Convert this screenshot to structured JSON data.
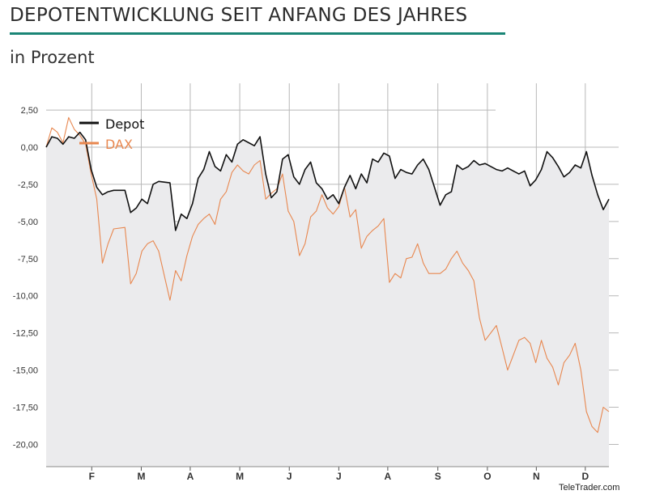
{
  "title": "DEPOTENTWICKLUNG SEIT ANFANG DES JAHRES",
  "subtitle": "in Prozent",
  "credit": "TeleTrader.com",
  "chart_data": {
    "type": "line",
    "ylim": [
      -21.5,
      4.3
    ],
    "x_range": [
      0,
      100
    ],
    "y_ticks": [
      2.5,
      0,
      -2.5,
      -5,
      -7.5,
      -10,
      -12.5,
      -15,
      -17.5,
      -20
    ],
    "y_tick_labels": [
      "2,50",
      "0,00",
      "-2,50",
      "-5,00",
      "-7,50",
      "-10,00",
      "-12,50",
      "-15,00",
      "-17,50",
      "-20,00"
    ],
    "month_labels": [
      {
        "label": "F",
        "x": 8.1
      },
      {
        "label": "M",
        "x": 16.9
      },
      {
        "label": "A",
        "x": 25.6
      },
      {
        "label": "M",
        "x": 34.4
      },
      {
        "label": "J",
        "x": 43.2
      },
      {
        "label": "J",
        "x": 52.0
      },
      {
        "label": "A",
        "x": 60.7
      },
      {
        "label": "S",
        "x": 69.6
      },
      {
        "label": "O",
        "x": 78.4
      },
      {
        "label": "N",
        "x": 87.1
      },
      {
        "label": "D",
        "x": 95.8
      }
    ],
    "colors": {
      "depot": "#111111",
      "dax": "#e8874f",
      "area": "#ebebed",
      "grid": "#b8b8b8",
      "title_rule": "#1a8576"
    },
    "series": [
      {
        "name": "Depot",
        "x": [
          0,
          1,
          2,
          3,
          4,
          5,
          6,
          7,
          8,
          9,
          10,
          11,
          12,
          14,
          15,
          16,
          17,
          18,
          19,
          20,
          22,
          23,
          24,
          25,
          26,
          27,
          28,
          29,
          30,
          31,
          32,
          33,
          34,
          35,
          36,
          37,
          38,
          39,
          40,
          41,
          42,
          43,
          44,
          45,
          46,
          47,
          48,
          49,
          50,
          51,
          52,
          53,
          54,
          55,
          56,
          57,
          58,
          59,
          60,
          61,
          62,
          63,
          64,
          65,
          66,
          67,
          68,
          70,
          71,
          72,
          73,
          74,
          75,
          76,
          77,
          78,
          80,
          81,
          82,
          84,
          85,
          86,
          87,
          88,
          89,
          90,
          91,
          92,
          93,
          94,
          95,
          96,
          97,
          98,
          99,
          100
        ],
        "values": [
          0,
          0.7,
          0.6,
          0.2,
          0.7,
          0.6,
          1.0,
          0.5,
          -1.5,
          -2.7,
          -3.2,
          -3.0,
          -2.9,
          -2.9,
          -4.4,
          -4.1,
          -3.5,
          -3.8,
          -2.5,
          -2.3,
          -2.4,
          -5.6,
          -4.5,
          -4.8,
          -3.8,
          -2.1,
          -1.5,
          -0.3,
          -1.3,
          -1.6,
          -0.5,
          -1.0,
          0.2,
          0.5,
          0.3,
          0.1,
          0.7,
          -1.8,
          -3.4,
          -3.0,
          -0.8,
          -0.5,
          -2.0,
          -2.5,
          -1.5,
          -1.0,
          -2.4,
          -2.8,
          -3.5,
          -3.2,
          -3.8,
          -2.7,
          -1.9,
          -2.8,
          -1.8,
          -2.4,
          -0.8,
          -1.0,
          -0.4,
          -0.6,
          -2.1,
          -1.5,
          -1.7,
          -1.8,
          -1.2,
          -0.8,
          -1.5,
          -3.9,
          -3.2,
          -3.0,
          -1.2,
          -1.5,
          -1.3,
          -0.9,
          -1.2,
          -1.1,
          -1.5,
          -1.6,
          -1.4,
          -1.8,
          -1.6,
          -2.6,
          -2.2,
          -1.5,
          -0.3,
          -0.7,
          -1.3,
          -2.0,
          -1.7,
          -1.2,
          -1.4,
          -0.3,
          -1.9,
          -3.2,
          -4.2,
          -3.5
        ]
      },
      {
        "name": "DAX",
        "x": [
          0,
          1,
          2,
          3,
          4,
          5,
          6,
          7,
          8,
          9,
          10,
          11,
          12,
          14,
          15,
          16,
          17,
          18,
          19,
          20,
          22,
          23,
          24,
          25,
          26,
          27,
          28,
          29,
          30,
          31,
          32,
          33,
          34,
          35,
          36,
          37,
          38,
          39,
          40,
          41,
          42,
          43,
          44,
          45,
          46,
          47,
          48,
          49,
          50,
          51,
          52,
          53,
          54,
          55,
          56,
          57,
          58,
          59,
          60,
          61,
          62,
          63,
          64,
          65,
          66,
          67,
          68,
          70,
          71,
          72,
          73,
          74,
          75,
          76,
          77,
          78,
          80,
          81,
          82,
          84,
          85,
          86,
          87,
          88,
          89,
          90,
          91,
          92,
          93,
          94,
          95,
          96,
          97,
          98,
          99,
          100
        ],
        "values": [
          0,
          1.3,
          1.0,
          0.3,
          2.0,
          1.2,
          0.8,
          0.2,
          -1.8,
          -3.5,
          -7.8,
          -6.5,
          -5.5,
          -5.4,
          -9.2,
          -8.5,
          -7.0,
          -6.5,
          -6.3,
          -7.0,
          -10.3,
          -8.3,
          -9.0,
          -7.3,
          -6.0,
          -5.2,
          -4.8,
          -4.5,
          -5.2,
          -3.5,
          -3.0,
          -1.7,
          -1.2,
          -1.6,
          -1.8,
          -1.2,
          -0.9,
          -3.5,
          -3.1,
          -2.8,
          -1.8,
          -4.3,
          -5.0,
          -7.3,
          -6.5,
          -4.7,
          -4.3,
          -3.2,
          -4.1,
          -4.5,
          -4.0,
          -2.7,
          -4.7,
          -4.2,
          -6.8,
          -6.0,
          -5.6,
          -5.3,
          -4.8,
          -9.1,
          -8.5,
          -8.8,
          -7.5,
          -7.4,
          -6.5,
          -7.8,
          -8.5,
          -8.5,
          -8.2,
          -7.5,
          -7.0,
          -7.8,
          -8.3,
          -9.0,
          -11.5,
          -13.0,
          -12.0,
          -13.5,
          -15.0,
          -13.0,
          -12.8,
          -13.2,
          -14.5,
          -13.0,
          -14.2,
          -14.8,
          -16.0,
          -14.5,
          -14.0,
          -13.2,
          -15.0,
          -17.8,
          -18.8,
          -19.2,
          -17.5,
          -17.8
        ]
      }
    ]
  }
}
